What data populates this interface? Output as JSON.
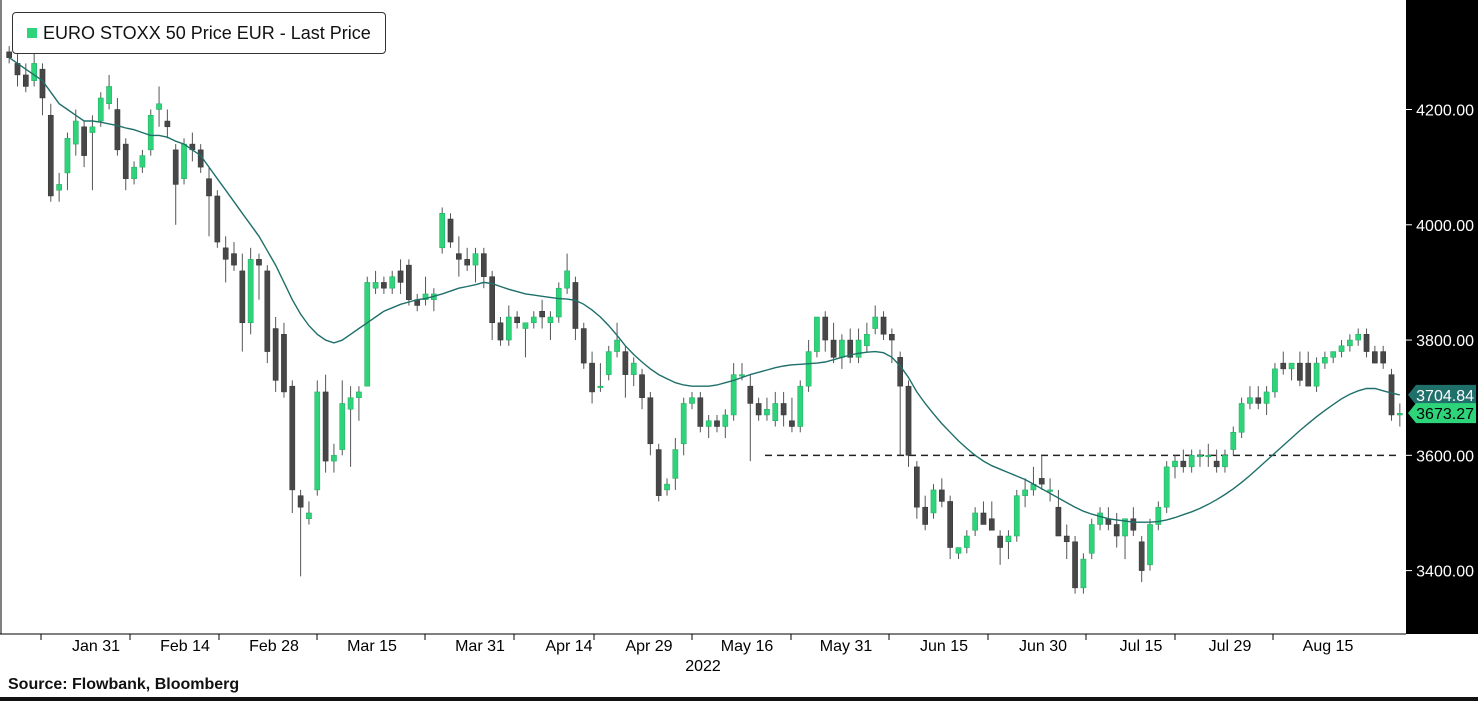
{
  "legend": {
    "label": "EURO STOXX 50 Price EUR - Last Price"
  },
  "source": "Source: Flowbank, Bloomberg",
  "colors": {
    "up": "#2ed47a",
    "down": "#474747",
    "ma": "#1f6f6a",
    "axis_bg": "#000000",
    "ma_badge": "#1f6f6a",
    "price_badge": "#2ed47a"
  },
  "chart_data": {
    "type": "candlestick",
    "y_ticks": [
      "4200.00",
      "4000.00",
      "3800.00",
      "3600.00",
      "3400.00"
    ],
    "ylim": [
      3290,
      4390
    ],
    "x_ticks": [
      "Jan 31",
      "Feb 14",
      "Feb 28",
      "Mar 15",
      "Mar 31",
      "Apr 14",
      "Apr 29",
      "May 16",
      "May 31",
      "Jun 15",
      "Jun 30",
      "Jul 15",
      "Jul 29",
      "Aug 15"
    ],
    "xlabel": "2022",
    "last_ma_label": "3704.84",
    "last_price_label": "3673.27",
    "support_level": 3600,
    "candles": [
      {
        "o": 4300,
        "h": 4310,
        "l": 4280,
        "c": 4290
      },
      {
        "o": 4280,
        "h": 4300,
        "l": 4240,
        "c": 4260
      },
      {
        "o": 4260,
        "h": 4280,
        "l": 4230,
        "c": 4240
      },
      {
        "o": 4250,
        "h": 4310,
        "l": 4240,
        "c": 4280
      },
      {
        "o": 4270,
        "h": 4280,
        "l": 4190,
        "c": 4220
      },
      {
        "o": 4190,
        "h": 4210,
        "l": 4040,
        "c": 4050
      },
      {
        "o": 4060,
        "h": 4090,
        "l": 4040,
        "c": 4070
      },
      {
        "o": 4090,
        "h": 4160,
        "l": 4060,
        "c": 4150
      },
      {
        "o": 4140,
        "h": 4200,
        "l": 4120,
        "c": 4180
      },
      {
        "o": 4170,
        "h": 4180,
        "l": 4100,
        "c": 4120
      },
      {
        "o": 4160,
        "h": 4190,
        "l": 4060,
        "c": 4170
      },
      {
        "o": 4180,
        "h": 4230,
        "l": 4170,
        "c": 4220
      },
      {
        "o": 4210,
        "h": 4260,
        "l": 4200,
        "c": 4240
      },
      {
        "o": 4200,
        "h": 4220,
        "l": 4120,
        "c": 4130
      },
      {
        "o": 4140,
        "h": 4150,
        "l": 4060,
        "c": 4080
      },
      {
        "o": 4080,
        "h": 4110,
        "l": 4070,
        "c": 4100
      },
      {
        "o": 4100,
        "h": 4130,
        "l": 4090,
        "c": 4120
      },
      {
        "o": 4130,
        "h": 4200,
        "l": 4120,
        "c": 4190
      },
      {
        "o": 4200,
        "h": 4240,
        "l": 4170,
        "c": 4210
      },
      {
        "o": 4180,
        "h": 4200,
        "l": 4150,
        "c": 4170
      },
      {
        "o": 4130,
        "h": 4140,
        "l": 4000,
        "c": 4070
      },
      {
        "o": 4080,
        "h": 4150,
        "l": 4070,
        "c": 4140
      },
      {
        "o": 4140,
        "h": 4160,
        "l": 4110,
        "c": 4130
      },
      {
        "o": 4130,
        "h": 4140,
        "l": 4090,
        "c": 4100
      },
      {
        "o": 4080,
        "h": 4100,
        "l": 3980,
        "c": 4050
      },
      {
        "o": 4050,
        "h": 4060,
        "l": 3960,
        "c": 3970
      },
      {
        "o": 3960,
        "h": 3980,
        "l": 3900,
        "c": 3940
      },
      {
        "o": 3950,
        "h": 3970,
        "l": 3920,
        "c": 3930
      },
      {
        "o": 3920,
        "h": 3950,
        "l": 3780,
        "c": 3830
      },
      {
        "o": 3830,
        "h": 3960,
        "l": 3810,
        "c": 3940
      },
      {
        "o": 3940,
        "h": 3950,
        "l": 3870,
        "c": 3930
      },
      {
        "o": 3920,
        "h": 3930,
        "l": 3760,
        "c": 3780
      },
      {
        "o": 3820,
        "h": 3840,
        "l": 3710,
        "c": 3730
      },
      {
        "o": 3810,
        "h": 3830,
        "l": 3700,
        "c": 3710
      },
      {
        "o": 3720,
        "h": 3730,
        "l": 3500,
        "c": 3540
      },
      {
        "o": 3530,
        "h": 3540,
        "l": 3390,
        "c": 3510
      },
      {
        "o": 3490,
        "h": 3520,
        "l": 3480,
        "c": 3500
      },
      {
        "o": 3540,
        "h": 3730,
        "l": 3530,
        "c": 3710
      },
      {
        "o": 3710,
        "h": 3740,
        "l": 3570,
        "c": 3590
      },
      {
        "o": 3590,
        "h": 3620,
        "l": 3570,
        "c": 3600
      },
      {
        "o": 3610,
        "h": 3730,
        "l": 3600,
        "c": 3690
      },
      {
        "o": 3680,
        "h": 3720,
        "l": 3580,
        "c": 3700
      },
      {
        "o": 3700,
        "h": 3720,
        "l": 3660,
        "c": 3710
      },
      {
        "o": 3720,
        "h": 3910,
        "l": 3720,
        "c": 3900
      },
      {
        "o": 3890,
        "h": 3920,
        "l": 3880,
        "c": 3900
      },
      {
        "o": 3900,
        "h": 3910,
        "l": 3880,
        "c": 3890
      },
      {
        "o": 3890,
        "h": 3920,
        "l": 3880,
        "c": 3910
      },
      {
        "o": 3920,
        "h": 3940,
        "l": 3880,
        "c": 3900
      },
      {
        "o": 3930,
        "h": 3940,
        "l": 3860,
        "c": 3870
      },
      {
        "o": 3870,
        "h": 3880,
        "l": 3850,
        "c": 3860
      },
      {
        "o": 3870,
        "h": 3910,
        "l": 3860,
        "c": 3880
      },
      {
        "o": 3870,
        "h": 3890,
        "l": 3850,
        "c": 3880
      },
      {
        "o": 3960,
        "h": 4030,
        "l": 3950,
        "c": 4020
      },
      {
        "o": 4010,
        "h": 4020,
        "l": 3960,
        "c": 3970
      },
      {
        "o": 3950,
        "h": 3980,
        "l": 3910,
        "c": 3940
      },
      {
        "o": 3940,
        "h": 3960,
        "l": 3920,
        "c": 3930
      },
      {
        "o": 3930,
        "h": 3960,
        "l": 3900,
        "c": 3950
      },
      {
        "o": 3950,
        "h": 3960,
        "l": 3890,
        "c": 3910
      },
      {
        "o": 3910,
        "h": 3920,
        "l": 3800,
        "c": 3830
      },
      {
        "o": 3830,
        "h": 3840,
        "l": 3790,
        "c": 3800
      },
      {
        "o": 3800,
        "h": 3860,
        "l": 3790,
        "c": 3840
      },
      {
        "o": 3840,
        "h": 3850,
        "l": 3820,
        "c": 3830
      },
      {
        "o": 3820,
        "h": 3830,
        "l": 3770,
        "c": 3830
      },
      {
        "o": 3830,
        "h": 3850,
        "l": 3820,
        "c": 3840
      },
      {
        "o": 3850,
        "h": 3870,
        "l": 3820,
        "c": 3840
      },
      {
        "o": 3830,
        "h": 3850,
        "l": 3800,
        "c": 3840
      },
      {
        "o": 3840,
        "h": 3900,
        "l": 3830,
        "c": 3890
      },
      {
        "o": 3890,
        "h": 3950,
        "l": 3880,
        "c": 3920
      },
      {
        "o": 3900,
        "h": 3910,
        "l": 3800,
        "c": 3820
      },
      {
        "o": 3820,
        "h": 3830,
        "l": 3750,
        "c": 3760
      },
      {
        "o": 3760,
        "h": 3780,
        "l": 3690,
        "c": 3710
      },
      {
        "o": 3720,
        "h": 3760,
        "l": 3710,
        "c": 3720
      },
      {
        "o": 3740,
        "h": 3790,
        "l": 3730,
        "c": 3780
      },
      {
        "o": 3780,
        "h": 3830,
        "l": 3770,
        "c": 3800
      },
      {
        "o": 3780,
        "h": 3790,
        "l": 3700,
        "c": 3740
      },
      {
        "o": 3740,
        "h": 3770,
        "l": 3720,
        "c": 3760
      },
      {
        "o": 3740,
        "h": 3750,
        "l": 3680,
        "c": 3700
      },
      {
        "o": 3700,
        "h": 3710,
        "l": 3600,
        "c": 3620
      },
      {
        "o": 3610,
        "h": 3620,
        "l": 3520,
        "c": 3530
      },
      {
        "o": 3540,
        "h": 3560,
        "l": 3530,
        "c": 3550
      },
      {
        "o": 3560,
        "h": 3630,
        "l": 3540,
        "c": 3610
      },
      {
        "o": 3620,
        "h": 3700,
        "l": 3600,
        "c": 3690
      },
      {
        "o": 3690,
        "h": 3710,
        "l": 3680,
        "c": 3700
      },
      {
        "o": 3700,
        "h": 3710,
        "l": 3640,
        "c": 3650
      },
      {
        "o": 3650,
        "h": 3670,
        "l": 3630,
        "c": 3660
      },
      {
        "o": 3660,
        "h": 3670,
        "l": 3640,
        "c": 3650
      },
      {
        "o": 3650,
        "h": 3680,
        "l": 3630,
        "c": 3670
      },
      {
        "o": 3670,
        "h": 3760,
        "l": 3660,
        "c": 3740
      },
      {
        "o": 3740,
        "h": 3760,
        "l": 3730,
        "c": 3740
      },
      {
        "o": 3720,
        "h": 3740,
        "l": 3590,
        "c": 3690
      },
      {
        "o": 3690,
        "h": 3700,
        "l": 3660,
        "c": 3670
      },
      {
        "o": 3670,
        "h": 3700,
        "l": 3660,
        "c": 3680
      },
      {
        "o": 3660,
        "h": 3710,
        "l": 3650,
        "c": 3690
      },
      {
        "o": 3690,
        "h": 3710,
        "l": 3650,
        "c": 3670
      },
      {
        "o": 3660,
        "h": 3700,
        "l": 3640,
        "c": 3650
      },
      {
        "o": 3650,
        "h": 3730,
        "l": 3640,
        "c": 3720
      },
      {
        "o": 3720,
        "h": 3800,
        "l": 3710,
        "c": 3780
      },
      {
        "o": 3780,
        "h": 3840,
        "l": 3770,
        "c": 3840
      },
      {
        "o": 3840,
        "h": 3850,
        "l": 3780,
        "c": 3800
      },
      {
        "o": 3800,
        "h": 3830,
        "l": 3760,
        "c": 3770
      },
      {
        "o": 3770,
        "h": 3810,
        "l": 3750,
        "c": 3800
      },
      {
        "o": 3800,
        "h": 3820,
        "l": 3760,
        "c": 3770
      },
      {
        "o": 3770,
        "h": 3820,
        "l": 3760,
        "c": 3800
      },
      {
        "o": 3790,
        "h": 3830,
        "l": 3780,
        "c": 3810
      },
      {
        "o": 3820,
        "h": 3860,
        "l": 3810,
        "c": 3840
      },
      {
        "o": 3840,
        "h": 3850,
        "l": 3800,
        "c": 3810
      },
      {
        "o": 3810,
        "h": 3820,
        "l": 3760,
        "c": 3800
      },
      {
        "o": 3770,
        "h": 3780,
        "l": 3600,
        "c": 3720
      },
      {
        "o": 3720,
        "h": 3730,
        "l": 3580,
        "c": 3600
      },
      {
        "o": 3580,
        "h": 3590,
        "l": 3490,
        "c": 3510
      },
      {
        "o": 3510,
        "h": 3530,
        "l": 3470,
        "c": 3480
      },
      {
        "o": 3500,
        "h": 3550,
        "l": 3490,
        "c": 3540
      },
      {
        "o": 3540,
        "h": 3560,
        "l": 3510,
        "c": 3520
      },
      {
        "o": 3520,
        "h": 3530,
        "l": 3420,
        "c": 3440
      },
      {
        "o": 3430,
        "h": 3440,
        "l": 3420,
        "c": 3440
      },
      {
        "o": 3440,
        "h": 3470,
        "l": 3430,
        "c": 3460
      },
      {
        "o": 3470,
        "h": 3510,
        "l": 3460,
        "c": 3500
      },
      {
        "o": 3500,
        "h": 3520,
        "l": 3480,
        "c": 3480
      },
      {
        "o": 3490,
        "h": 3520,
        "l": 3480,
        "c": 3470
      },
      {
        "o": 3460,
        "h": 3470,
        "l": 3410,
        "c": 3440
      },
      {
        "o": 3450,
        "h": 3470,
        "l": 3420,
        "c": 3460
      },
      {
        "o": 3460,
        "h": 3540,
        "l": 3450,
        "c": 3530
      },
      {
        "o": 3530,
        "h": 3560,
        "l": 3510,
        "c": 3540
      },
      {
        "o": 3540,
        "h": 3580,
        "l": 3530,
        "c": 3550
      },
      {
        "o": 3560,
        "h": 3600,
        "l": 3540,
        "c": 3550
      },
      {
        "o": 3540,
        "h": 3560,
        "l": 3520,
        "c": 3540
      },
      {
        "o": 3510,
        "h": 3540,
        "l": 3460,
        "c": 3460
      },
      {
        "o": 3460,
        "h": 3480,
        "l": 3420,
        "c": 3450
      },
      {
        "o": 3450,
        "h": 3460,
        "l": 3360,
        "c": 3370
      },
      {
        "o": 3370,
        "h": 3430,
        "l": 3360,
        "c": 3420
      },
      {
        "o": 3430,
        "h": 3490,
        "l": 3420,
        "c": 3480
      },
      {
        "o": 3480,
        "h": 3510,
        "l": 3470,
        "c": 3500
      },
      {
        "o": 3490,
        "h": 3510,
        "l": 3470,
        "c": 3480
      },
      {
        "o": 3480,
        "h": 3500,
        "l": 3440,
        "c": 3460
      },
      {
        "o": 3460,
        "h": 3490,
        "l": 3420,
        "c": 3490
      },
      {
        "o": 3490,
        "h": 3510,
        "l": 3460,
        "c": 3470
      },
      {
        "o": 3450,
        "h": 3460,
        "l": 3380,
        "c": 3400
      },
      {
        "o": 3410,
        "h": 3490,
        "l": 3400,
        "c": 3480
      },
      {
        "o": 3480,
        "h": 3520,
        "l": 3470,
        "c": 3510
      },
      {
        "o": 3510,
        "h": 3590,
        "l": 3500,
        "c": 3580
      },
      {
        "o": 3580,
        "h": 3600,
        "l": 3560,
        "c": 3590
      },
      {
        "o": 3590,
        "h": 3610,
        "l": 3570,
        "c": 3580
      },
      {
        "o": 3580,
        "h": 3610,
        "l": 3570,
        "c": 3600
      },
      {
        "o": 3600,
        "h": 3610,
        "l": 3580,
        "c": 3600
      },
      {
        "o": 3600,
        "h": 3620,
        "l": 3580,
        "c": 3600
      },
      {
        "o": 3590,
        "h": 3610,
        "l": 3570,
        "c": 3580
      },
      {
        "o": 3580,
        "h": 3610,
        "l": 3570,
        "c": 3600
      },
      {
        "o": 3610,
        "h": 3650,
        "l": 3600,
        "c": 3640
      },
      {
        "o": 3640,
        "h": 3700,
        "l": 3630,
        "c": 3690
      },
      {
        "o": 3690,
        "h": 3720,
        "l": 3680,
        "c": 3700
      },
      {
        "o": 3700,
        "h": 3720,
        "l": 3680,
        "c": 3690
      },
      {
        "o": 3690,
        "h": 3720,
        "l": 3670,
        "c": 3710
      },
      {
        "o": 3710,
        "h": 3760,
        "l": 3700,
        "c": 3750
      },
      {
        "o": 3760,
        "h": 3780,
        "l": 3740,
        "c": 3750
      },
      {
        "o": 3750,
        "h": 3760,
        "l": 3730,
        "c": 3760
      },
      {
        "o": 3760,
        "h": 3780,
        "l": 3720,
        "c": 3730
      },
      {
        "o": 3760,
        "h": 3780,
        "l": 3720,
        "c": 3720
      },
      {
        "o": 3720,
        "h": 3770,
        "l": 3710,
        "c": 3760
      },
      {
        "o": 3760,
        "h": 3780,
        "l": 3750,
        "c": 3770
      },
      {
        "o": 3770,
        "h": 3780,
        "l": 3760,
        "c": 3780
      },
      {
        "o": 3780,
        "h": 3800,
        "l": 3770,
        "c": 3790
      },
      {
        "o": 3790,
        "h": 3810,
        "l": 3780,
        "c": 3800
      },
      {
        "o": 3800,
        "h": 3820,
        "l": 3790,
        "c": 3810
      },
      {
        "o": 3810,
        "h": 3820,
        "l": 3770,
        "c": 3780
      },
      {
        "o": 3780,
        "h": 3790,
        "l": 3760,
        "c": 3760
      },
      {
        "o": 3780,
        "h": 3790,
        "l": 3750,
        "c": 3760
      },
      {
        "o": 3740,
        "h": 3750,
        "l": 3660,
        "c": 3670
      },
      {
        "o": 3670,
        "h": 3690,
        "l": 3650,
        "c": 3673
      }
    ],
    "ma": [
      4290,
      4280,
      4270,
      4260,
      4250,
      4230,
      4210,
      4200,
      4190,
      4180,
      4180,
      4178,
      4175,
      4172,
      4168,
      4165,
      4160,
      4155,
      4155,
      4152,
      4145,
      4140,
      4130,
      4120,
      4100,
      4080,
      4060,
      4040,
      4020,
      4000,
      3980,
      3955,
      3930,
      3900,
      3870,
      3845,
      3825,
      3810,
      3800,
      3795,
      3800,
      3810,
      3820,
      3830,
      3840,
      3850,
      3856,
      3862,
      3866,
      3870,
      3872,
      3876,
      3880,
      3885,
      3890,
      3893,
      3896,
      3900,
      3898,
      3893,
      3888,
      3884,
      3880,
      3878,
      3876,
      3874,
      3872,
      3871,
      3869,
      3862,
      3852,
      3840,
      3825,
      3808,
      3790,
      3775,
      3762,
      3750,
      3740,
      3733,
      3726,
      3722,
      3720,
      3720,
      3720,
      3722,
      3726,
      3730,
      3735,
      3740,
      3744,
      3748,
      3752,
      3755,
      3757,
      3758,
      3759,
      3760,
      3762,
      3766,
      3770,
      3774,
      3777,
      3779,
      3780,
      3778,
      3770,
      3755,
      3735,
      3710,
      3690,
      3672,
      3655,
      3640,
      3625,
      3612,
      3600,
      3590,
      3582,
      3576,
      3570,
      3564,
      3558,
      3550,
      3542,
      3534,
      3526,
      3518,
      3510,
      3503,
      3498,
      3494,
      3490,
      3488,
      3486,
      3484,
      3484,
      3484,
      3485,
      3488,
      3492,
      3497,
      3502,
      3508,
      3515,
      3523,
      3532,
      3542,
      3553,
      3565,
      3578,
      3591,
      3604,
      3617,
      3630,
      3643,
      3655,
      3667,
      3678,
      3688,
      3698,
      3706,
      3712,
      3716,
      3716,
      3712,
      3708,
      3704.84
    ]
  }
}
